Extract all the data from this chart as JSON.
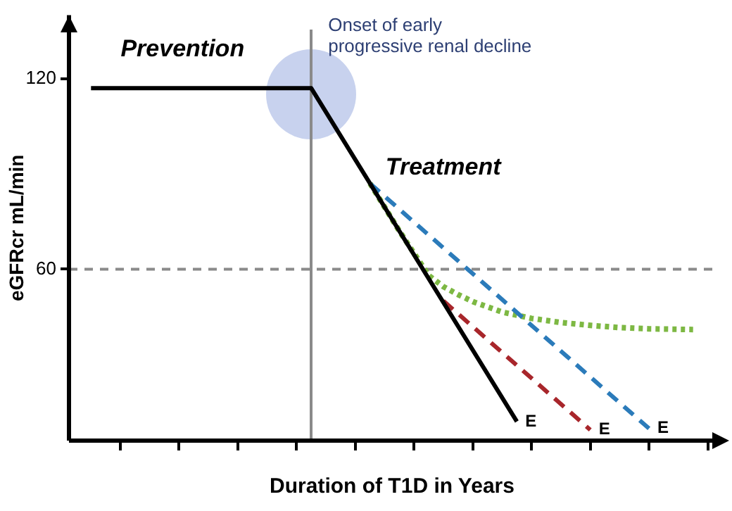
{
  "chart_data": {
    "type": "line",
    "xlabel": "Duration of T1D in Years",
    "ylabel": "eGFRcr mL/min",
    "categories": [
      null,
      null,
      null,
      null,
      null,
      null,
      null,
      null,
      null,
      null,
      null,
      null,
      null,
      null,
      null,
      null,
      null,
      null,
      null,
      null,
      null,
      null,
      null,
      null,
      null,
      null,
      null,
      null,
      null,
      null,
      null,
      null,
      null,
      null,
      null,
      null,
      null,
      null,
      null,
      null,
      null,
      null,
      null,
      null
    ],
    "ylim": [
      6,
      140
    ],
    "yticks": [
      60,
      120
    ],
    "grid": false,
    "legend": false,
    "marker": "none",
    "series": [
      {
        "color": "#000000",
        "line_style": "solid",
        "values": [
          null,
          117,
          null,
          null,
          null,
          null,
          null,
          null,
          null,
          null,
          null,
          null,
          null,
          null,
          null,
          null,
          117,
          null,
          null,
          null,
          null,
          null,
          null,
          null,
          null,
          null,
          null,
          null,
          null,
          null,
          12,
          null,
          null,
          null,
          null,
          null,
          null,
          null,
          null,
          null,
          null,
          null,
          null,
          null
        ],
        "value_labels": [
          null,
          null,
          null,
          null,
          null,
          null,
          null,
          null,
          null,
          null,
          null,
          null,
          null,
          null,
          null,
          null,
          null,
          null,
          null,
          null,
          null,
          null,
          null,
          null,
          null,
          null,
          null,
          null,
          null,
          null,
          "E",
          null,
          null,
          null,
          null,
          null,
          null,
          null,
          null,
          null,
          null,
          null,
          null,
          null
        ]
      },
      {
        "color": "#2b7bba",
        "line_style": "dashed",
        "values": [
          null,
          null,
          null,
          null,
          null,
          null,
          null,
          null,
          null,
          null,
          null,
          null,
          null,
          null,
          null,
          null,
          null,
          null,
          null,
          null,
          87,
          null,
          null,
          null,
          null,
          null,
          null,
          null,
          null,
          null,
          null,
          null,
          null,
          null,
          null,
          null,
          null,
          null,
          null,
          9.8,
          null,
          null,
          null,
          null
        ],
        "value_labels": [
          null,
          null,
          null,
          null,
          null,
          null,
          null,
          null,
          null,
          null,
          null,
          null,
          null,
          null,
          null,
          null,
          null,
          null,
          null,
          null,
          null,
          null,
          null,
          null,
          null,
          null,
          null,
          null,
          null,
          null,
          null,
          null,
          null,
          null,
          null,
          null,
          null,
          null,
          null,
          "E",
          null,
          null,
          null,
          null
        ]
      },
      {
        "color": "#a8262b",
        "line_style": "dashed",
        "values": [
          null,
          null,
          null,
          null,
          null,
          null,
          null,
          null,
          null,
          null,
          null,
          null,
          null,
          null,
          null,
          null,
          null,
          null,
          null,
          null,
          null,
          null,
          null,
          null,
          null,
          50,
          null,
          null,
          null,
          null,
          null,
          null,
          null,
          null,
          null,
          9.4,
          null,
          null,
          null,
          null,
          null,
          null,
          null,
          null
        ],
        "value_labels": [
          null,
          null,
          null,
          null,
          null,
          null,
          null,
          null,
          null,
          null,
          null,
          null,
          null,
          null,
          null,
          null,
          null,
          null,
          null,
          null,
          null,
          null,
          null,
          null,
          null,
          null,
          null,
          null,
          null,
          null,
          null,
          null,
          null,
          null,
          null,
          "E",
          null,
          null,
          null,
          null,
          null,
          null,
          null,
          null
        ]
      },
      {
        "color": "#7db843",
        "line_style": "dotted",
        "values": [
          null,
          null,
          null,
          null,
          null,
          null,
          null,
          null,
          null,
          null,
          null,
          null,
          null,
          null,
          null,
          null,
          null,
          null,
          null,
          null,
          87,
          null,
          72,
          null,
          58,
          54.5,
          52,
          49.8,
          null,
          46.5,
          null,
          44.5,
          null,
          43.2,
          null,
          42.3,
          null,
          41.6,
          null,
          41.2,
          null,
          null,
          41,
          null
        ]
      }
    ],
    "ref_lines": [
      {
        "axis": "y",
        "value": 60,
        "color": "#8a8a8a",
        "line_style": "dashed"
      }
    ],
    "annotations": [
      "Prevention",
      "Treatment",
      "Onset of early progressive renal decline"
    ]
  }
}
